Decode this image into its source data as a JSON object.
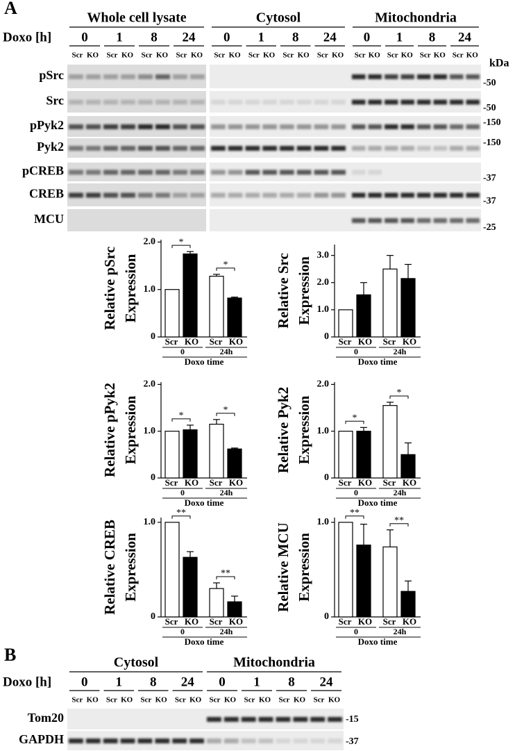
{
  "panel_a": {
    "label": "A",
    "doxo_label": "Doxo [h]",
    "kda_label": "kDa",
    "sections": [
      {
        "title": "Whole cell lysate",
        "times": [
          "0",
          "1",
          "8",
          "24"
        ]
      },
      {
        "title": "Cytosol",
        "times": [
          "0",
          "1",
          "8",
          "24"
        ]
      },
      {
        "title": "Mitochondria",
        "times": [
          "0",
          "1",
          "8",
          "24"
        ]
      }
    ],
    "lanes": [
      "Scr",
      "KO"
    ],
    "blots": [
      {
        "name": "pSrc",
        "marker": "-50"
      },
      {
        "name": "Src",
        "marker": "-50"
      },
      {
        "name": "pPyk2",
        "marker": "-150"
      },
      {
        "name": "Pyk2",
        "marker": "-150"
      },
      {
        "name": "pCREB",
        "marker": "-37"
      },
      {
        "name": "CREB",
        "marker": "-37"
      },
      {
        "name": "MCU",
        "marker": "-25"
      }
    ]
  },
  "chart_data": [
    {
      "type": "bar",
      "ylabel": [
        "Relative pSrc",
        "Expression"
      ],
      "categories": [
        "Scr",
        "KO",
        "Scr",
        "KO"
      ],
      "groups": [
        "0",
        "24h"
      ],
      "xlabel": "Doxo time",
      "values": [
        1.0,
        1.75,
        1.28,
        0.82
      ],
      "errors": [
        null,
        0.05,
        0.04,
        0.02
      ],
      "colors": [
        "#ffffff",
        "#000000",
        "#ffffff",
        "#000000"
      ],
      "ylim": [
        0,
        2.05
      ],
      "yticks": [
        0,
        {
          "value": 1,
          "label": "1.0"
        },
        {
          "value": 2,
          "label": "2.0"
        }
      ],
      "significance": [
        "*",
        "*"
      ]
    },
    {
      "type": "bar",
      "ylabel": [
        "Relative Src",
        "Expression"
      ],
      "categories": [
        "Scr",
        "KO",
        "Scr",
        "KO"
      ],
      "groups": [
        "0",
        "24h"
      ],
      "xlabel": "Doxo time",
      "values": [
        1.0,
        1.55,
        2.5,
        2.15
      ],
      "errors": [
        null,
        0.45,
        0.5,
        0.52
      ],
      "colors": [
        "#ffffff",
        "#000000",
        "#ffffff",
        "#000000"
      ],
      "ylim": [
        0,
        3.4
      ],
      "yticks": [
        0,
        {
          "value": 1,
          "label": "1.0"
        },
        {
          "value": 2,
          "label": "2.0"
        },
        {
          "value": 3,
          "label": "3.0"
        }
      ]
    },
    {
      "type": "bar",
      "ylabel": [
        "Relative pPyk2",
        "Expression"
      ],
      "categories": [
        "Scr",
        "KO",
        "Scr",
        "KO"
      ],
      "groups": [
        "0",
        "24h"
      ],
      "xlabel": "Doxo time",
      "values": [
        1.0,
        1.03,
        1.15,
        0.62
      ],
      "errors": [
        null,
        0.1,
        0.1,
        0.02
      ],
      "colors": [
        "#ffffff",
        "#000000",
        "#ffffff",
        "#000000"
      ],
      "ylim": [
        0,
        2.05
      ],
      "yticks": [
        0,
        {
          "value": 1,
          "label": "1.0"
        },
        {
          "value": 2,
          "label": "2.0"
        }
      ],
      "significance": [
        "*",
        "*"
      ]
    },
    {
      "type": "bar",
      "ylabel": [
        "Relative Pyk2",
        "Expression"
      ],
      "categories": [
        "Scr",
        "KO",
        "Scr",
        "KO"
      ],
      "groups": [
        "0",
        "24h"
      ],
      "xlabel": "Doxo time",
      "values": [
        1.0,
        1.0,
        1.55,
        0.5
      ],
      "errors": [
        null,
        0.08,
        0.07,
        0.25
      ],
      "colors": [
        "#ffffff",
        "#000000",
        "#ffffff",
        "#000000"
      ],
      "ylim": [
        0,
        2.05
      ],
      "yticks": [
        0,
        {
          "value": 1,
          "label": "1.0"
        },
        {
          "value": 2,
          "label": "2.0"
        }
      ],
      "significance": [
        "*",
        "*"
      ]
    },
    {
      "type": "bar",
      "ylabel": [
        "Relative CREB",
        "Expression"
      ],
      "categories": [
        "Scr",
        "KO",
        "Scr",
        "KO"
      ],
      "groups": [
        "0",
        "24h"
      ],
      "xlabel": "Doxo time",
      "values": [
        1.0,
        0.63,
        0.3,
        0.16
      ],
      "errors": [
        null,
        0.06,
        0.06,
        0.06
      ],
      "colors": [
        "#ffffff",
        "#000000",
        "#ffffff",
        "#000000"
      ],
      "ylim": [
        0,
        1.05
      ],
      "yticks": [
        0,
        {
          "value": 1,
          "label": "1.0"
        }
      ],
      "significance": [
        "**",
        "**"
      ]
    },
    {
      "type": "bar",
      "ylabel": [
        "Relative MCU",
        "Expression"
      ],
      "categories": [
        "Scr",
        "KO",
        "Scr",
        "KO"
      ],
      "groups": [
        "0",
        "24h"
      ],
      "xlabel": "Doxo time",
      "values": [
        1.0,
        0.76,
        0.74,
        0.27
      ],
      "errors": [
        null,
        0.22,
        0.18,
        0.11
      ],
      "colors": [
        "#ffffff",
        "#000000",
        "#ffffff",
        "#000000"
      ],
      "ylim": [
        0,
        1.05
      ],
      "yticks": [
        0,
        {
          "value": 1,
          "label": "1.0"
        }
      ],
      "significance": [
        "**",
        "**"
      ]
    }
  ],
  "panel_b": {
    "label": "B",
    "doxo_label": "Doxo [h]",
    "sections": [
      {
        "title": "Cytosol",
        "times": [
          "0",
          "1",
          "8",
          "24"
        ]
      },
      {
        "title": "Mitochondria",
        "times": [
          "0",
          "1",
          "8",
          "24"
        ]
      }
    ],
    "lanes": [
      "Scr",
      "KO"
    ],
    "blots": [
      {
        "name": "Tom20",
        "marker": "-15"
      },
      {
        "name": "GAPDH",
        "marker": "-37"
      }
    ]
  }
}
